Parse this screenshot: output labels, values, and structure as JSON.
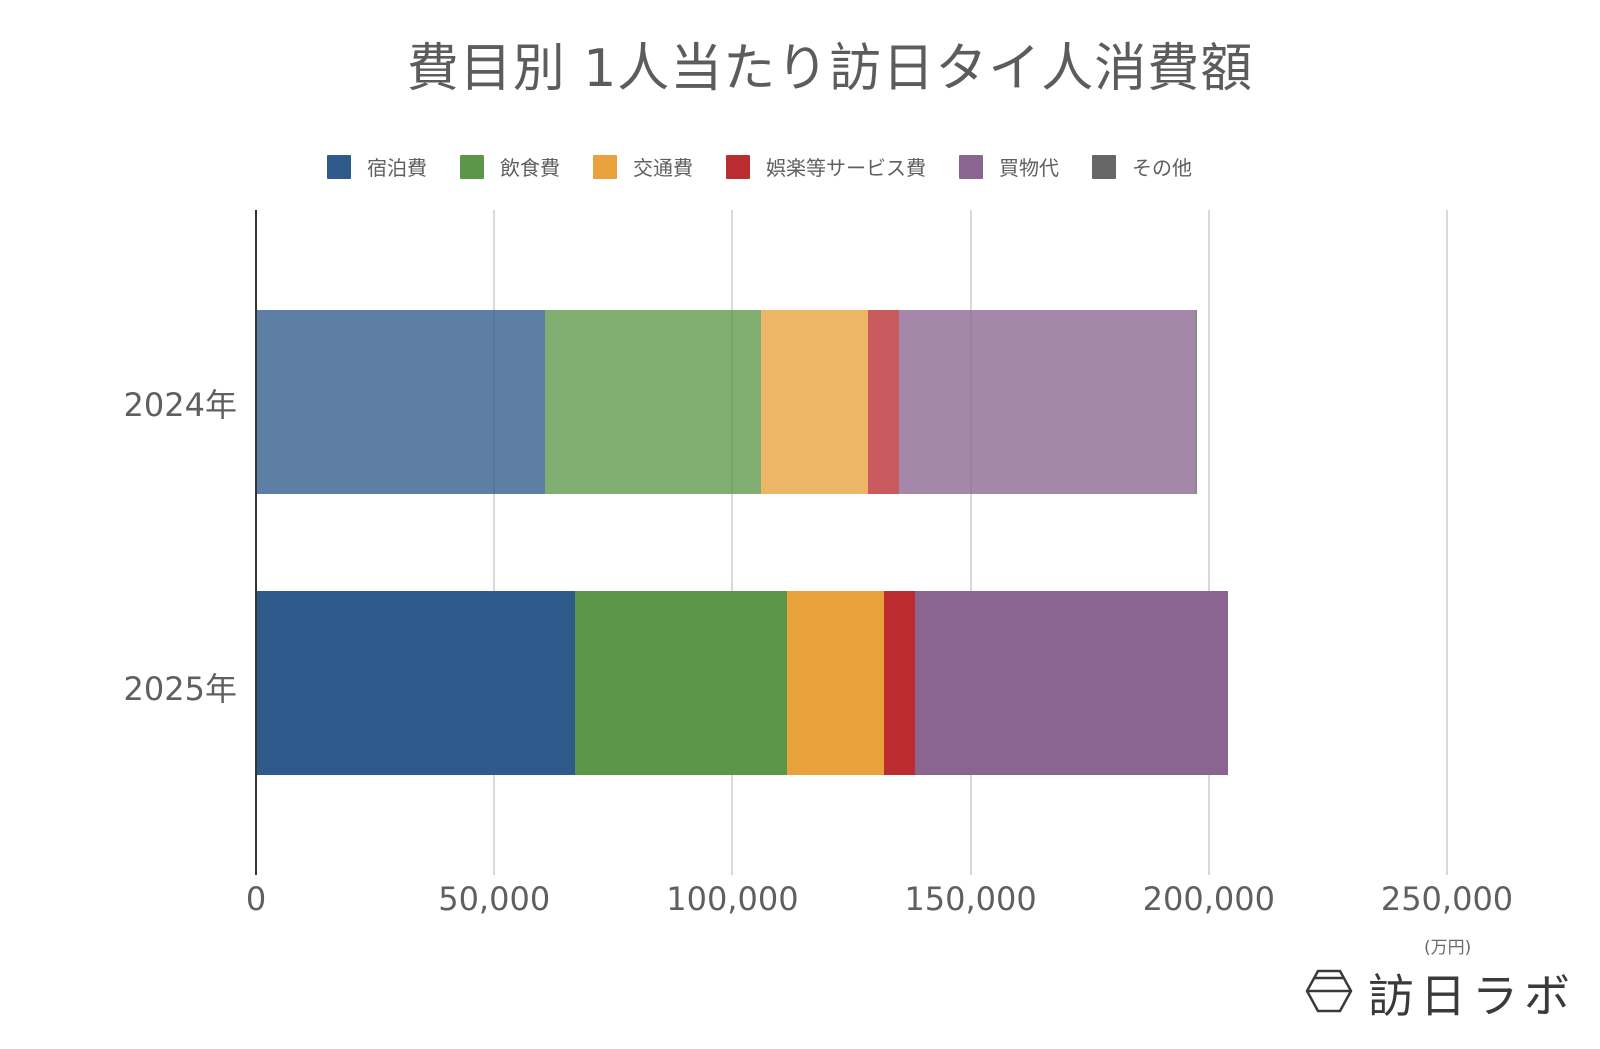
{
  "title": "費目別 1人当たり訪日タイ人消費額",
  "unit_label": "(万円)",
  "logo": {
    "text": "訪日ラボ",
    "icon": "hexagon-logo-icon"
  },
  "legend": [
    {
      "label": "宿泊費",
      "color": "#2f5a8c"
    },
    {
      "label": "飲食費",
      "color": "#5c9648"
    },
    {
      "label": "交通費",
      "color": "#e8a13b"
    },
    {
      "label": "娯楽等サービス費",
      "color": "#ba2c30"
    },
    {
      "label": "買物代",
      "color": "#8b6591"
    },
    {
      "label": "その他",
      "color": "#666666"
    }
  ],
  "axis": {
    "ticks": [
      "0",
      "50,000",
      "100,000",
      "150,000",
      "200,000",
      "250,000"
    ]
  },
  "categories": [
    "2024年",
    "2025年"
  ],
  "chart_data": {
    "type": "bar",
    "orientation": "horizontal",
    "stacked": true,
    "title": "費目別 1人当たり訪日タイ人消費額",
    "xlabel": "(万円)",
    "ylabel": "",
    "categories": [
      "2024年",
      "2025年"
    ],
    "series": [
      {
        "name": "宿泊費",
        "color": "#2f5a8c",
        "values": [
          60700,
          67000
        ]
      },
      {
        "name": "飲食費",
        "color": "#5c9648",
        "values": [
          45300,
          44500
        ]
      },
      {
        "name": "交通費",
        "color": "#e8a13b",
        "values": [
          22500,
          20400
        ]
      },
      {
        "name": "娯楽等サービス費",
        "color": "#ba2c30",
        "values": [
          6500,
          6500
        ]
      },
      {
        "name": "買物代",
        "color": "#8b6591",
        "values": [
          62100,
          65700
        ]
      },
      {
        "name": "その他",
        "color": "#666666",
        "values": [
          400,
          0
        ]
      }
    ],
    "xlim": [
      0,
      270000
    ],
    "xticks": [
      0,
      50000,
      100000,
      150000,
      200000,
      250000
    ],
    "grid": true,
    "legend_position": "top"
  }
}
